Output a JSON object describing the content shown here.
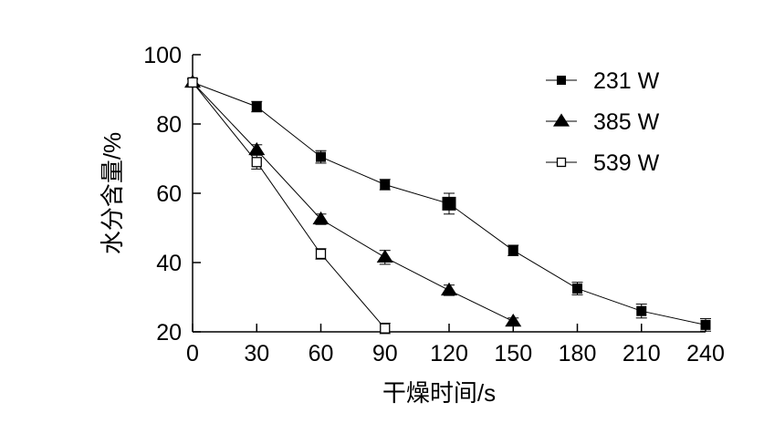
{
  "chart_data": {
    "type": "line",
    "title": "",
    "xlabel": "干燥时间/s",
    "ylabel": "水分含量/%",
    "x_ticks": [
      0,
      30,
      60,
      90,
      120,
      150,
      180,
      210,
      240
    ],
    "y_ticks": [
      20,
      40,
      60,
      80,
      100
    ],
    "xlim": [
      0,
      240
    ],
    "ylim": [
      20,
      100
    ],
    "grid": false,
    "legend_position": "top-right",
    "series": [
      {
        "name": "231 W",
        "marker": "filled-square",
        "x": [
          0,
          30,
          60,
          90,
          120,
          150,
          180,
          210,
          240
        ],
        "y": [
          92,
          85,
          70.5,
          62.5,
          57,
          43.5,
          32.5,
          26,
          22
        ],
        "err": [
          1,
          1.5,
          1.8,
          1.5,
          3,
          1.5,
          1.8,
          2,
          1.8
        ]
      },
      {
        "name": "385 W",
        "marker": "filled-triangle",
        "x": [
          0,
          30,
          60,
          90,
          120,
          150
        ],
        "y": [
          92,
          72.5,
          52.5,
          41.5,
          32,
          23
        ],
        "err": [
          1,
          1.5,
          1.5,
          2,
          1.5,
          1
        ]
      },
      {
        "name": "539 W",
        "marker": "open-square",
        "x": [
          0,
          30,
          60,
          90
        ],
        "y": [
          92,
          69,
          42.5,
          21
        ],
        "err": [
          1,
          2,
          1.5,
          1.5
        ]
      }
    ]
  }
}
